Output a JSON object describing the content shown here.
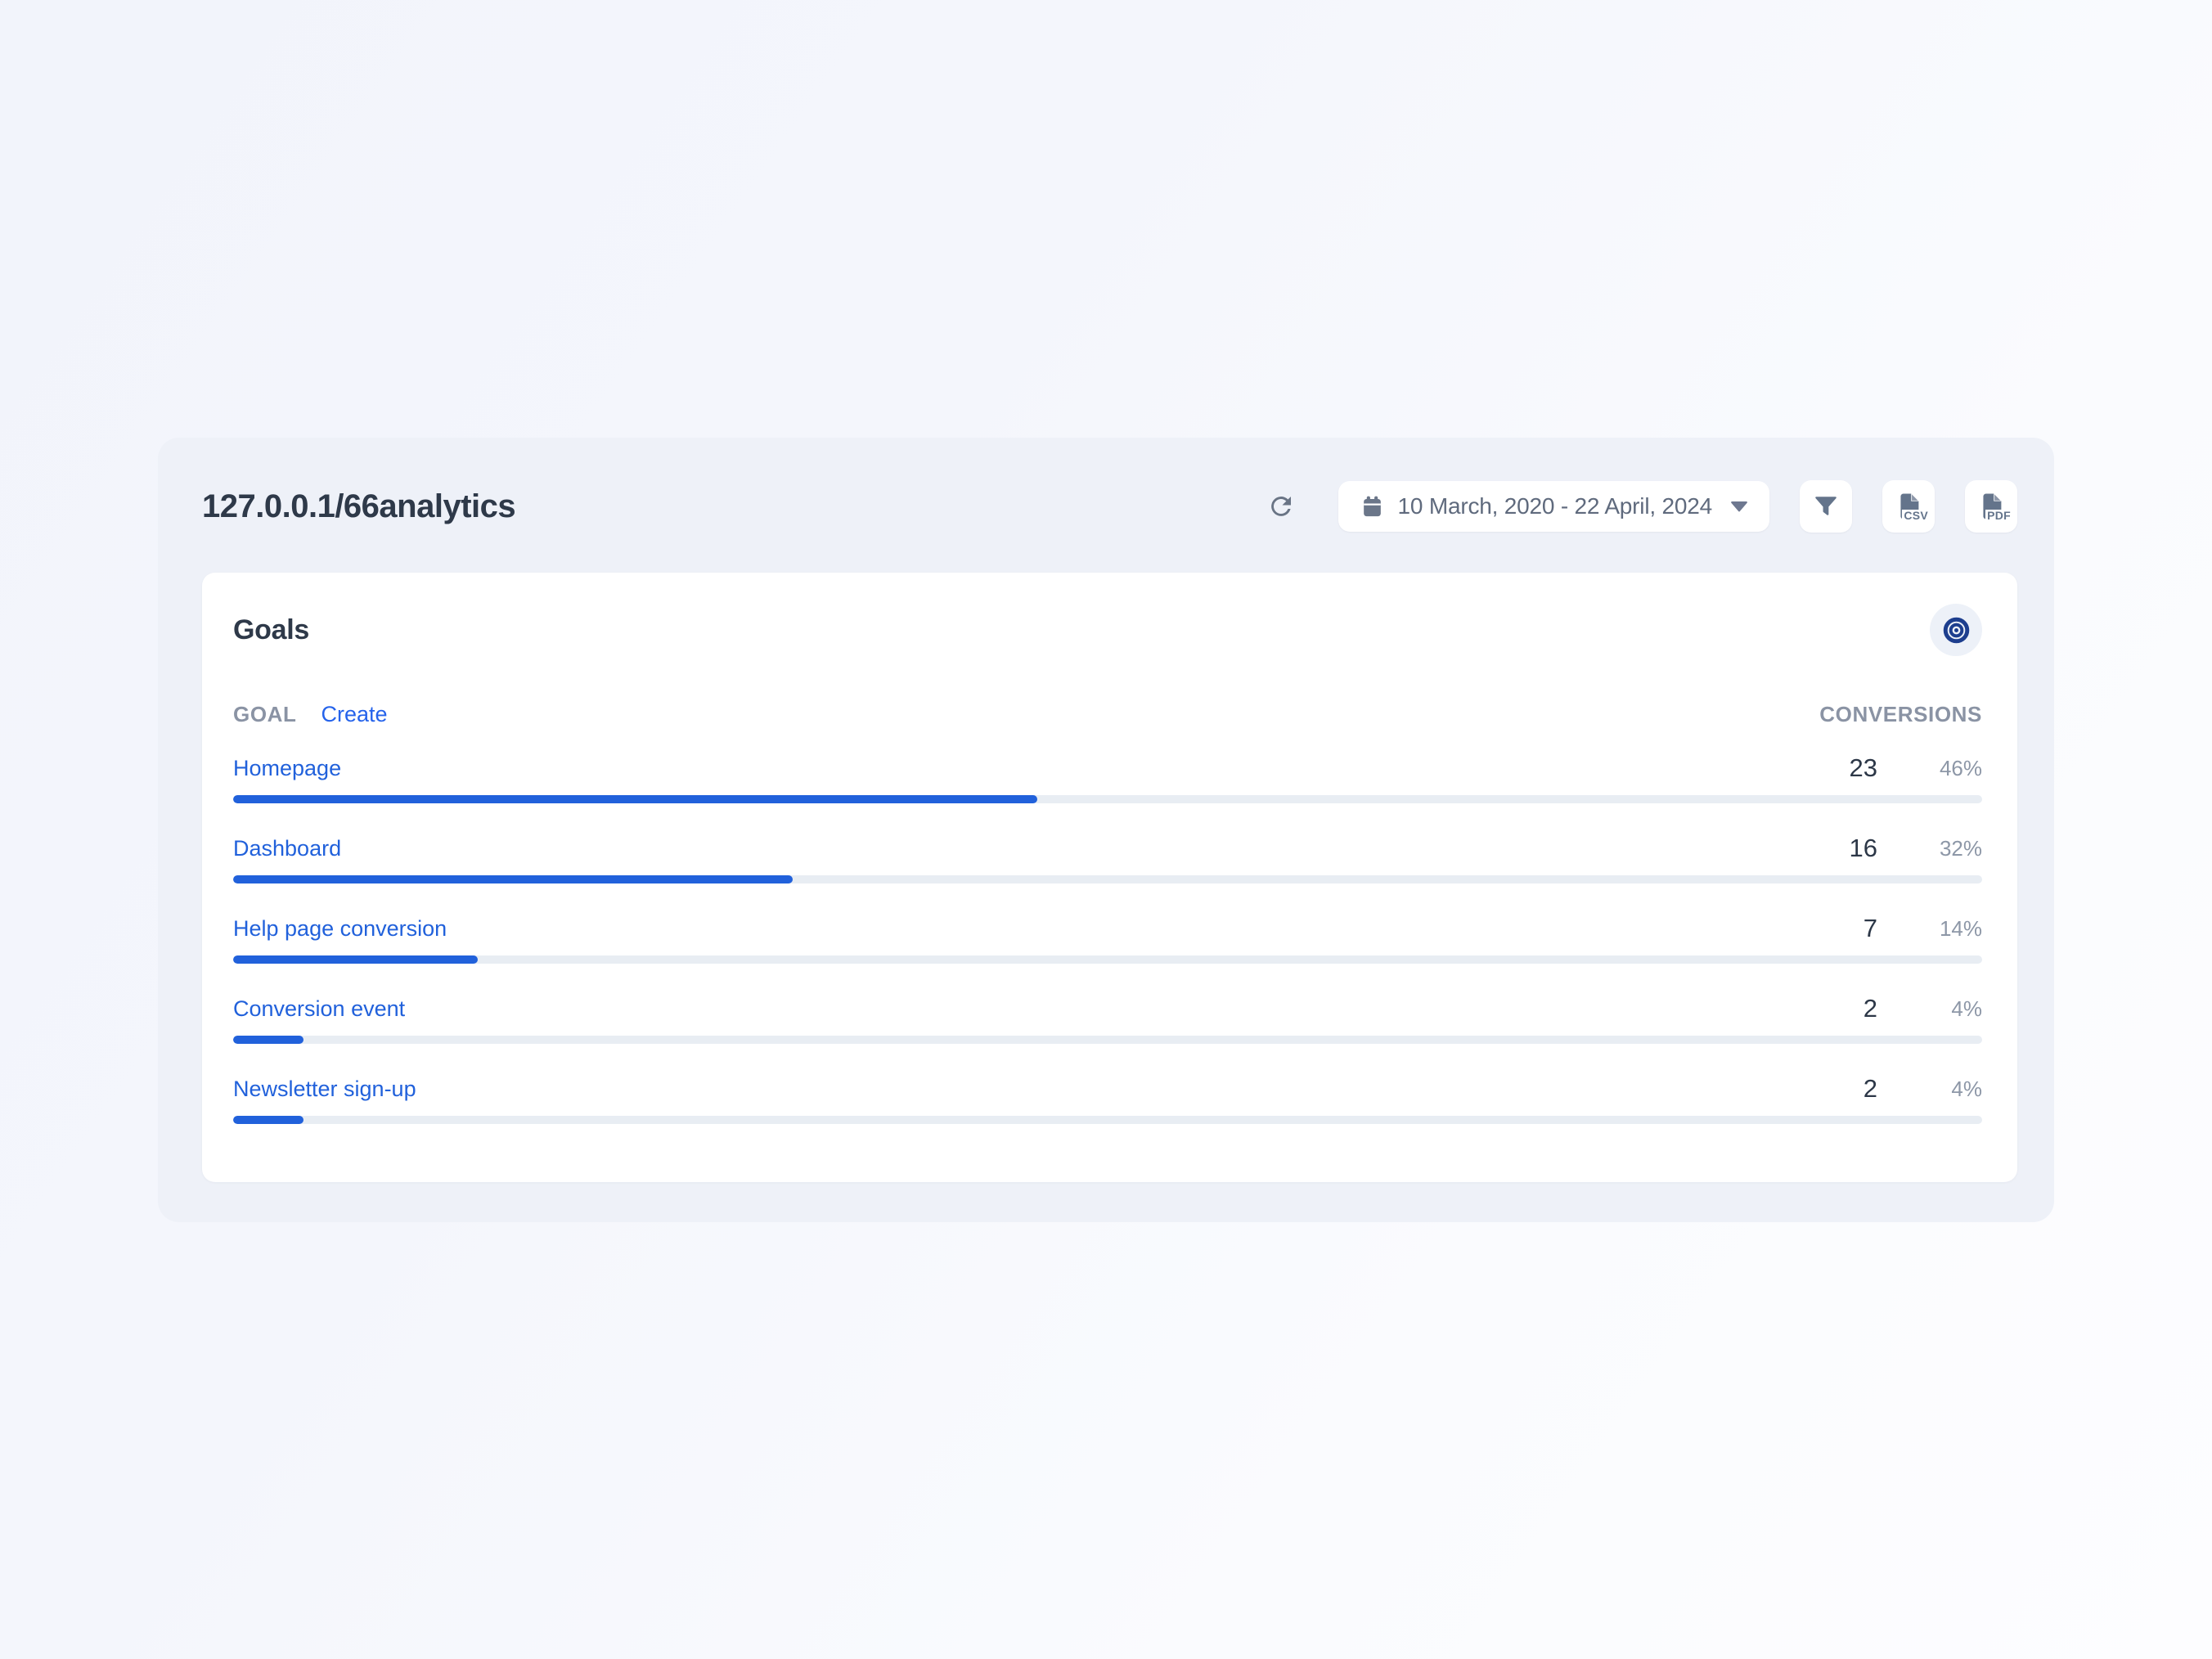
{
  "page": {
    "title": "127.0.0.1/66analytics"
  },
  "toolbar": {
    "date_range": "10 March, 2020 - 22 April, 2024",
    "csv_label": "CSV",
    "pdf_label": "PDF",
    "icons": {
      "refresh": "refresh-icon",
      "calendar": "calendar-icon",
      "caret": "chevron-down-icon",
      "filter": "filter-funnel-icon",
      "csv": "export-csv-file-icon",
      "pdf": "export-pdf-file-icon"
    }
  },
  "goals": {
    "title": "Goals",
    "goal_col": "GOAL",
    "create_label": "Create",
    "conversions_col": "CONVERSIONS",
    "target_icon": "bullseye-target-icon",
    "rows": [
      {
        "name": "Homepage",
        "conversions": 23,
        "percent": "46%",
        "pct": 46
      },
      {
        "name": "Dashboard",
        "conversions": 16,
        "percent": "32%",
        "pct": 32
      },
      {
        "name": "Help page conversion",
        "conversions": 7,
        "percent": "14%",
        "pct": 14
      },
      {
        "name": "Conversion event",
        "conversions": 2,
        "percent": "4%",
        "pct": 4
      },
      {
        "name": "Newsletter sign-up",
        "conversions": 2,
        "percent": "4%",
        "pct": 4
      }
    ]
  },
  "colors": {
    "accent_blue": "#2161db",
    "link_blue": "#2563eb",
    "bar_track": "#e8edf3",
    "panel_bg": "#eef1f8",
    "card_bg": "#ffffff",
    "dark_text": "#2e3949",
    "gray_text": "#8a93a4",
    "icon_slate": "#64748b",
    "target_navy": "#1d3e8e"
  }
}
